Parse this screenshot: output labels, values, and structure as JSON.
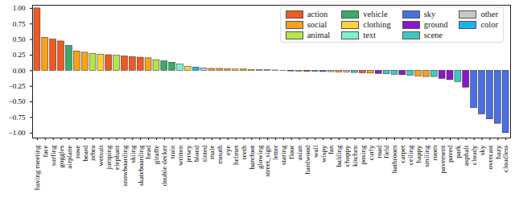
{
  "chart_data": {
    "type": "bar",
    "categories": [
      "having meeting",
      "face",
      "surfing",
      "goggles",
      "airplane",
      "nose",
      "beard",
      "zebra",
      "wetsuit",
      "jumping",
      "elephant",
      "snowboarding",
      "skiing",
      "skateboarding",
      "head",
      "giraffe",
      "double decker",
      "train",
      "written",
      "jersey",
      "blond",
      "tinted",
      "male",
      "mouth",
      "eye",
      "helmet",
      "teeth",
      "barefoot",
      "glowing",
      "street_sign",
      "letter",
      "staring",
      "floor",
      "asian",
      "hardwood",
      "wall",
      "wispy",
      "fan",
      "balding",
      "choppy",
      "kitchen",
      "posing",
      "curly",
      "road",
      "field",
      "bathroom",
      "carpet",
      "ceiling",
      "happy",
      "smiling",
      "room",
      "pavement",
      "paved",
      "park",
      "asphalt",
      "cloudy",
      "sky",
      "overcast",
      "hazy",
      "cloudless"
    ],
    "series": [
      {
        "name": "action",
        "color": "#ee5a24",
        "values": [
          1.0,
          null,
          0.5,
          0.47,
          null,
          null,
          null,
          null,
          null,
          0.25,
          null,
          0.23,
          0.22,
          0.21,
          null,
          null,
          null,
          null,
          null,
          null,
          null,
          null,
          null,
          null,
          null,
          null,
          null,
          null,
          null,
          null,
          null,
          -0.005,
          null,
          null,
          null,
          null,
          null,
          null,
          null,
          null,
          null,
          -0.04,
          null,
          null,
          null,
          null,
          null,
          null,
          null,
          null,
          null,
          null,
          null,
          null,
          null,
          null,
          null,
          null,
          null,
          null
        ]
      },
      {
        "name": "social",
        "color": "#f7a21b",
        "values": [
          null,
          0.53,
          null,
          null,
          null,
          0.31,
          0.29,
          null,
          null,
          null,
          null,
          null,
          null,
          null,
          0.2,
          null,
          null,
          null,
          null,
          null,
          null,
          null,
          0.03,
          0.03,
          0.025,
          null,
          0.02,
          null,
          null,
          null,
          null,
          null,
          null,
          -0.012,
          null,
          null,
          null,
          null,
          -0.025,
          null,
          null,
          null,
          -0.045,
          null,
          null,
          null,
          null,
          null,
          -0.09,
          -0.1,
          null,
          null,
          null,
          null,
          null,
          null,
          null,
          null,
          null,
          null
        ]
      },
      {
        "name": "animal",
        "color": "#b8e34a",
        "values": [
          null,
          null,
          null,
          null,
          null,
          null,
          null,
          0.27,
          null,
          null,
          0.24,
          null,
          null,
          null,
          null,
          0.17,
          null,
          null,
          null,
          null,
          null,
          null,
          null,
          null,
          null,
          null,
          null,
          null,
          null,
          null,
          null,
          null,
          null,
          null,
          null,
          null,
          null,
          null,
          null,
          null,
          null,
          null,
          null,
          null,
          null,
          null,
          null,
          null,
          null,
          null,
          null,
          null,
          null,
          null,
          null,
          null,
          null,
          null,
          null,
          null
        ]
      },
      {
        "name": "vehicle",
        "color": "#3aaa6a",
        "values": [
          null,
          null,
          null,
          null,
          0.4,
          null,
          null,
          null,
          null,
          null,
          null,
          null,
          null,
          null,
          null,
          null,
          0.15,
          0.13,
          null,
          null,
          null,
          null,
          null,
          null,
          null,
          null,
          null,
          null,
          null,
          null,
          null,
          null,
          null,
          null,
          null,
          null,
          null,
          null,
          null,
          null,
          null,
          null,
          null,
          null,
          null,
          null,
          null,
          null,
          null,
          null,
          null,
          null,
          null,
          null,
          null,
          null,
          null,
          null,
          null,
          null
        ]
      },
      {
        "name": "clothing",
        "color": "#fcd23c",
        "values": [
          null,
          null,
          null,
          null,
          null,
          null,
          null,
          null,
          0.26,
          null,
          null,
          null,
          null,
          null,
          null,
          null,
          null,
          null,
          null,
          0.06,
          null,
          null,
          null,
          null,
          null,
          0.02,
          null,
          0.015,
          null,
          null,
          null,
          null,
          null,
          null,
          null,
          null,
          null,
          null,
          null,
          null,
          null,
          null,
          null,
          null,
          null,
          null,
          null,
          null,
          null,
          null,
          null,
          null,
          null,
          null,
          null,
          null,
          null,
          null,
          null,
          null
        ]
      },
      {
        "name": "text",
        "color": "#7ff0d0",
        "values": [
          null,
          null,
          null,
          null,
          null,
          null,
          null,
          null,
          null,
          null,
          null,
          null,
          null,
          null,
          null,
          null,
          null,
          null,
          0.1,
          null,
          null,
          null,
          null,
          null,
          null,
          null,
          null,
          null,
          null,
          0.01,
          0.005,
          null,
          null,
          null,
          null,
          null,
          null,
          null,
          null,
          null,
          null,
          null,
          null,
          null,
          null,
          null,
          null,
          null,
          null,
          null,
          null,
          null,
          null,
          null,
          null,
          null,
          null,
          null,
          null,
          null
        ]
      },
      {
        "name": "sky",
        "color": "#4a6fe3",
        "values": [
          null,
          null,
          null,
          null,
          null,
          null,
          null,
          null,
          null,
          null,
          null,
          null,
          null,
          null,
          null,
          null,
          null,
          null,
          null,
          null,
          null,
          null,
          null,
          null,
          null,
          null,
          null,
          null,
          null,
          null,
          null,
          null,
          null,
          null,
          null,
          null,
          -0.02,
          null,
          null,
          null,
          null,
          null,
          null,
          null,
          null,
          null,
          null,
          null,
          null,
          null,
          null,
          null,
          null,
          null,
          null,
          -0.6,
          -0.7,
          -0.78,
          -0.85,
          -1.0
        ]
      },
      {
        "name": "ground",
        "color": "#8a16c9",
        "values": [
          null,
          null,
          null,
          null,
          null,
          null,
          null,
          null,
          null,
          null,
          null,
          null,
          null,
          null,
          null,
          null,
          null,
          null,
          null,
          null,
          null,
          null,
          null,
          null,
          null,
          null,
          null,
          null,
          null,
          null,
          null,
          null,
          -0.01,
          null,
          -0.015,
          null,
          null,
          null,
          null,
          null,
          null,
          null,
          null,
          -0.05,
          null,
          null,
          -0.07,
          null,
          null,
          null,
          null,
          -0.13,
          -0.15,
          null,
          -0.27,
          null,
          null,
          null,
          null,
          null
        ]
      },
      {
        "name": "scene",
        "color": "#3ec9c0",
        "values": [
          null,
          null,
          null,
          null,
          null,
          null,
          null,
          null,
          null,
          null,
          null,
          null,
          null,
          null,
          null,
          null,
          null,
          null,
          null,
          null,
          null,
          null,
          null,
          null,
          null,
          null,
          null,
          null,
          null,
          null,
          null,
          null,
          null,
          null,
          null,
          -0.017,
          null,
          null,
          null,
          null,
          -0.035,
          null,
          null,
          null,
          -0.055,
          -0.065,
          null,
          -0.08,
          null,
          null,
          -0.1,
          null,
          null,
          -0.18,
          null,
          null,
          null,
          null,
          null,
          null
        ]
      },
      {
        "name": "other",
        "color": "#c8c8c8",
        "values": [
          null,
          null,
          null,
          null,
          null,
          null,
          null,
          null,
          null,
          null,
          null,
          null,
          null,
          null,
          null,
          null,
          null,
          null,
          null,
          null,
          null,
          0.04,
          null,
          null,
          null,
          null,
          null,
          null,
          0.01,
          null,
          null,
          null,
          null,
          null,
          null,
          null,
          null,
          -0.022,
          null,
          -0.03,
          null,
          null,
          null,
          null,
          null,
          null,
          null,
          null,
          null,
          null,
          null,
          null,
          null,
          null,
          null,
          null,
          null,
          null,
          null,
          null
        ]
      },
      {
        "name": "color",
        "color": "#18b4f0",
        "values": [
          null,
          null,
          null,
          null,
          null,
          null,
          null,
          null,
          null,
          null,
          null,
          null,
          null,
          null,
          null,
          null,
          null,
          null,
          null,
          null,
          0.05,
          null,
          null,
          null,
          null,
          null,
          null,
          null,
          null,
          null,
          null,
          null,
          null,
          null,
          null,
          null,
          null,
          null,
          null,
          null,
          null,
          null,
          null,
          null,
          null,
          null,
          null,
          null,
          null,
          null,
          null,
          null,
          null,
          null,
          null,
          null,
          null,
          null,
          null,
          null
        ]
      }
    ],
    "ylim": [
      -1.08,
      1.05
    ],
    "yticks": [
      {
        "value": -1,
        "label": "−1.00"
      },
      {
        "value": -0.75,
        "label": "−0.75"
      },
      {
        "value": -0.5,
        "label": "−0.50"
      },
      {
        "value": -0.25,
        "label": "−0.25"
      },
      {
        "value": 0,
        "label": "0.00"
      },
      {
        "value": 0.25,
        "label": "0.25"
      },
      {
        "value": 0.5,
        "label": "0.50"
      },
      {
        "value": 0.75,
        "label": "0.75"
      },
      {
        "value": 1,
        "label": "1.00"
      }
    ],
    "legend": "upper right"
  }
}
